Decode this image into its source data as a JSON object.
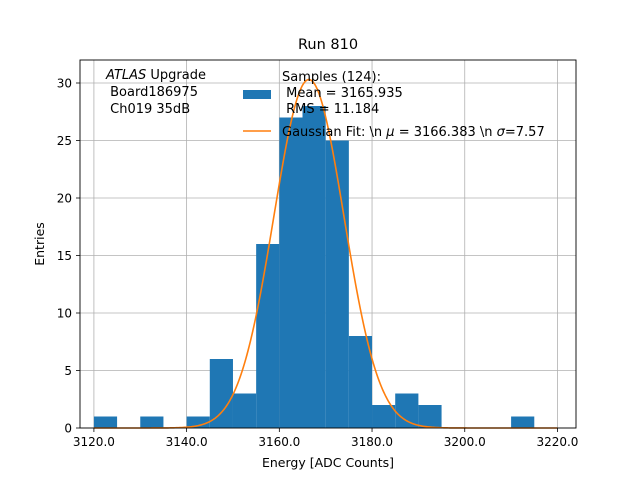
{
  "chart_data": {
    "type": "bar",
    "title": "Run 810",
    "xlabel": "Energy [ADC Counts]",
    "ylabel": "Entries",
    "xlim": [
      3117,
      3224
    ],
    "ylim": [
      0,
      32
    ],
    "xticks": [
      3120,
      3140,
      3160,
      3180,
      3200,
      3220
    ],
    "xtick_labels": [
      "3120.0",
      "3140.0",
      "3160.0",
      "3180.0",
      "3200.0",
      "3220.0"
    ],
    "yticks": [
      0,
      5,
      10,
      15,
      20,
      25,
      30
    ],
    "ytick_labels": [
      "0",
      "5",
      "10",
      "15",
      "20",
      "25",
      "30"
    ],
    "grid": true,
    "bins": {
      "edges": [
        3120,
        3125,
        3130,
        3135,
        3140,
        3145,
        3150,
        3155,
        3160,
        3165,
        3170,
        3175,
        3180,
        3185,
        3190,
        3195,
        3200,
        3205,
        3210,
        3215
      ],
      "counts": [
        1,
        0,
        1,
        0,
        1,
        6,
        3,
        16,
        27,
        28,
        25,
        8,
        2,
        3,
        2,
        0,
        0,
        0,
        1
      ],
      "color": "#1f77b4"
    },
    "fit": {
      "type": "gaussian",
      "mu": 3166.383,
      "sigma": 7.57,
      "amplitude": 30.3,
      "color": "#ff7f0e"
    },
    "annotation": {
      "italic": "ATLAS",
      "rest": " Upgrade",
      "line2": " Board186975",
      "line3": " Ch019 35dB"
    },
    "legend": {
      "placement": "top-right",
      "title": "Samples (124):",
      "hist_label_line1": " Mean = 3165.935",
      "hist_label_line2": " RMS = 11.184",
      "fit_label_pre": "Gaussian Fit: \\n ",
      "fit_mu": "μ",
      "fit_label_mid": " = 3166.383 \\n ",
      "fit_sigma": "σ",
      "fit_label_post": "=7.57"
    }
  }
}
